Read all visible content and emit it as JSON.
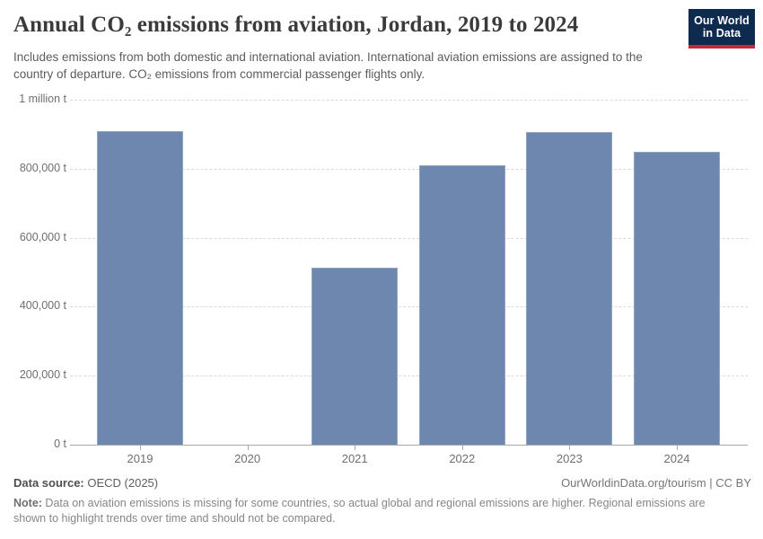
{
  "header": {
    "title": "Annual CO₂ emissions from aviation, Jordan, 2019 to 2024",
    "subtitle": "Includes emissions from both domestic and international aviation. International aviation emissions are assigned to the country of departure. CO₂ emissions from commercial passenger flights only."
  },
  "logo": {
    "line1": "Our World",
    "line2": "in Data",
    "bg_color": "#0e2a4e",
    "accent_color": "#c52938"
  },
  "chart_data": {
    "type": "bar",
    "title": "Annual CO₂ emissions from aviation, Jordan, 2019 to 2024",
    "categories": [
      "2019",
      "2020",
      "2021",
      "2022",
      "2023",
      "2024"
    ],
    "values": [
      910000,
      null,
      512000,
      810000,
      905000,
      848000
    ],
    "missing_categories": [
      "2020"
    ],
    "unit": "t",
    "ylabel": "",
    "xlabel": "",
    "ylim": [
      0,
      1000000
    ],
    "yticks": [
      {
        "value": 0,
        "label": "0 t"
      },
      {
        "value": 200000,
        "label": "200,000 t"
      },
      {
        "value": 400000,
        "label": "400,000 t"
      },
      {
        "value": 600000,
        "label": "600,000 t"
      },
      {
        "value": 800000,
        "label": "800,000 t"
      },
      {
        "value": 1000000,
        "label": "1 million t"
      }
    ],
    "grid": "horizontal-dashed",
    "legend": "none",
    "bar_color": "#6d87ae"
  },
  "footer": {
    "data_source_label": "Data source:",
    "data_source_value": " OECD (2025)",
    "link_text": "OurWorldinData.org/tourism | CC BY",
    "note_label": "Note:",
    "note_text": " Data on aviation emissions is missing for some countries, so actual global and regional emissions are higher. Regional emissions are shown to highlight trends over time and should not be compared."
  }
}
